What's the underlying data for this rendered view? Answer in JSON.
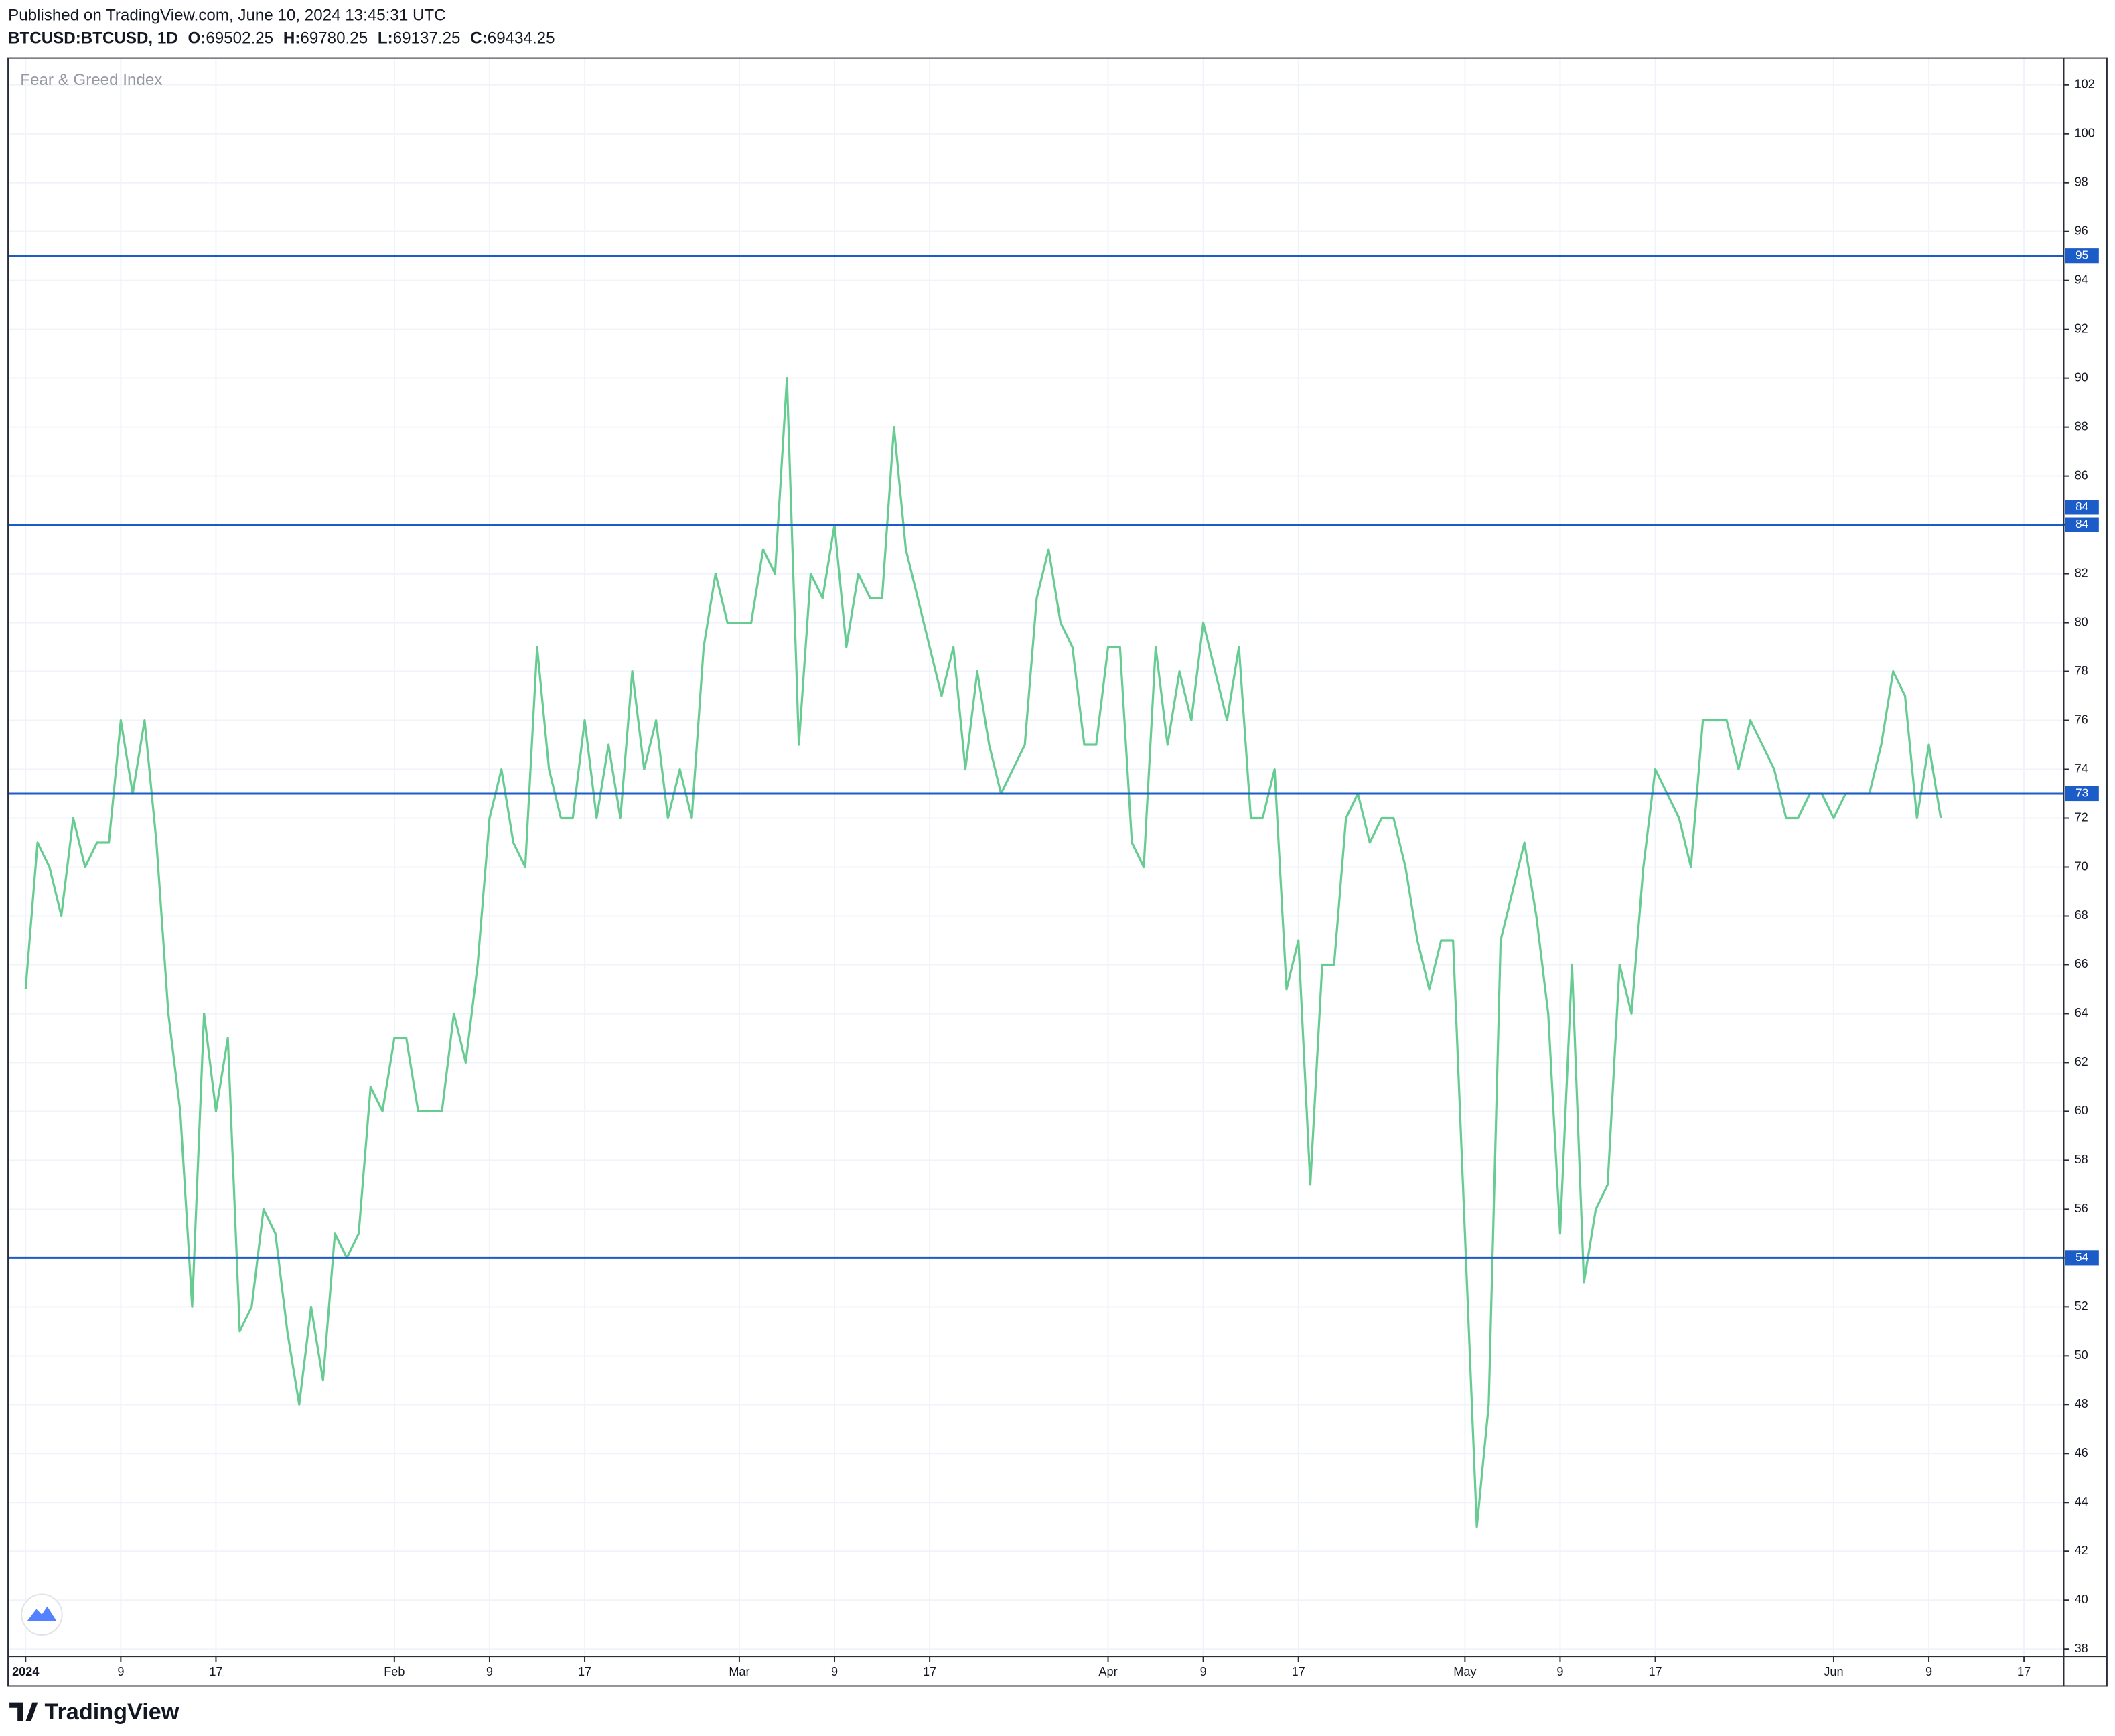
{
  "header": {
    "published": "Published on TradingView.com, June 10, 2024 13:45:31 UTC",
    "symbol": "BTCUSD:BTCUSD, 1D",
    "ohlc": [
      {
        "label": "O:",
        "value": 69502.25
      },
      {
        "label": "H:",
        "value": 69780.25
      },
      {
        "label": "L:",
        "value": 69137.25
      },
      {
        "label": "C:",
        "value": 69434.25
      }
    ]
  },
  "footer": {
    "brand": "TradingView"
  },
  "chart_data": {
    "type": "line",
    "x": [
      "2024-01-01",
      "2024-01-02",
      "2024-01-03",
      "2024-01-04",
      "2024-01-05",
      "2024-01-06",
      "2024-01-07",
      "2024-01-08",
      "2024-01-09",
      "2024-01-10",
      "2024-01-11",
      "2024-01-12",
      "2024-01-13",
      "2024-01-14",
      "2024-01-15",
      "2024-01-16",
      "2024-01-17",
      "2024-01-18",
      "2024-01-19",
      "2024-01-20",
      "2024-01-21",
      "2024-01-22",
      "2024-01-23",
      "2024-01-24",
      "2024-01-25",
      "2024-01-26",
      "2024-01-27",
      "2024-01-28",
      "2024-01-29",
      "2024-01-30",
      "2024-01-31",
      "2024-02-01",
      "2024-02-02",
      "2024-02-03",
      "2024-02-04",
      "2024-02-05",
      "2024-02-06",
      "2024-02-07",
      "2024-02-08",
      "2024-02-09",
      "2024-02-10",
      "2024-02-11",
      "2024-02-12",
      "2024-02-13",
      "2024-02-14",
      "2024-02-15",
      "2024-02-16",
      "2024-02-17",
      "2024-02-18",
      "2024-02-19",
      "2024-02-20",
      "2024-02-21",
      "2024-02-22",
      "2024-02-23",
      "2024-02-24",
      "2024-02-25",
      "2024-02-26",
      "2024-02-27",
      "2024-02-28",
      "2024-02-29",
      "2024-03-01",
      "2024-03-02",
      "2024-03-03",
      "2024-03-04",
      "2024-03-05",
      "2024-03-06",
      "2024-03-07",
      "2024-03-08",
      "2024-03-09",
      "2024-03-10",
      "2024-03-11",
      "2024-03-12",
      "2024-03-13",
      "2024-03-14",
      "2024-03-15",
      "2024-03-16",
      "2024-03-17",
      "2024-03-18",
      "2024-03-19",
      "2024-03-20",
      "2024-03-21",
      "2024-03-22",
      "2024-03-23",
      "2024-03-24",
      "2024-03-25",
      "2024-03-26",
      "2024-03-27",
      "2024-03-28",
      "2024-03-29",
      "2024-03-30",
      "2024-03-31",
      "2024-04-01",
      "2024-04-02",
      "2024-04-03",
      "2024-04-04",
      "2024-04-05",
      "2024-04-06",
      "2024-04-07",
      "2024-04-08",
      "2024-04-09",
      "2024-04-10",
      "2024-04-11",
      "2024-04-12",
      "2024-04-13",
      "2024-04-14",
      "2024-04-15",
      "2024-04-16",
      "2024-04-17",
      "2024-04-18",
      "2024-04-19",
      "2024-04-20",
      "2024-04-21",
      "2024-04-22",
      "2024-04-23",
      "2024-04-24",
      "2024-04-25",
      "2024-04-26",
      "2024-04-27",
      "2024-04-28",
      "2024-04-29",
      "2024-04-30",
      "2024-05-01",
      "2024-05-02",
      "2024-05-03",
      "2024-05-04",
      "2024-05-05",
      "2024-05-06",
      "2024-05-07",
      "2024-05-08",
      "2024-05-09",
      "2024-05-10",
      "2024-05-11",
      "2024-05-12",
      "2024-05-13",
      "2024-05-14",
      "2024-05-15",
      "2024-05-16",
      "2024-05-17",
      "2024-05-18",
      "2024-05-19",
      "2024-05-20",
      "2024-05-21",
      "2024-05-22",
      "2024-05-23",
      "2024-05-24",
      "2024-05-25",
      "2024-05-26",
      "2024-05-27",
      "2024-05-28",
      "2024-05-29",
      "2024-05-30",
      "2024-05-31",
      "2024-06-01",
      "2024-06-02",
      "2024-06-03",
      "2024-06-04",
      "2024-06-05",
      "2024-06-06",
      "2024-06-07",
      "2024-06-08",
      "2024-06-09",
      "2024-06-10"
    ],
    "series": [
      {
        "name": "Fear & Greed Index",
        "color": "#66cc91",
        "values": [
          65,
          71,
          70,
          68,
          72,
          70,
          71,
          71,
          76,
          73,
          76,
          71,
          64,
          60,
          52,
          64,
          60,
          63,
          51,
          52,
          56,
          55,
          51,
          48,
          52,
          49,
          55,
          54,
          55,
          61,
          60,
          63,
          63,
          60,
          60,
          60,
          64,
          62,
          66,
          72,
          74,
          71,
          70,
          79,
          74,
          72,
          72,
          76,
          72,
          75,
          72,
          78,
          74,
          76,
          72,
          74,
          72,
          79,
          82,
          80,
          80,
          80,
          83,
          82,
          90,
          75,
          82,
          81,
          84,
          79,
          82,
          81,
          81,
          88,
          83,
          81,
          79,
          77,
          79,
          74,
          78,
          75,
          73,
          74,
          75,
          81,
          83,
          80,
          79,
          75,
          75,
          79,
          79,
          71,
          70,
          79,
          75,
          78,
          76,
          80,
          78,
          76,
          79,
          72,
          72,
          74,
          65,
          67,
          57,
          66,
          66,
          72,
          73,
          71,
          72,
          72,
          70,
          67,
          65,
          67,
          67,
          55,
          43,
          48,
          67,
          69,
          71,
          68,
          64,
          55,
          66,
          53,
          56,
          57,
          66,
          64,
          70,
          74,
          73,
          72,
          70,
          76,
          76,
          76,
          74,
          76,
          75,
          74,
          72,
          72,
          73,
          73,
          72,
          73,
          73,
          73,
          75,
          78,
          77,
          72,
          75,
          72
        ]
      }
    ],
    "levels": [
      95,
      84,
      84,
      73,
      54
    ],
    "level_color": "#1c5cc8",
    "xlim": [
      "2024-01-01",
      "2024-06-20"
    ],
    "xticks": [
      {
        "value": "2024-01-01",
        "label": "2024"
      },
      {
        "value": "2024-01-09",
        "label": "9"
      },
      {
        "value": "2024-01-17",
        "label": "17"
      },
      {
        "value": "2024-02-01",
        "label": "Feb"
      },
      {
        "value": "2024-02-09",
        "label": "9"
      },
      {
        "value": "2024-02-17",
        "label": "17"
      },
      {
        "value": "2024-03-01",
        "label": "Mar"
      },
      {
        "value": "2024-03-09",
        "label": "9"
      },
      {
        "value": "2024-03-17",
        "label": "17"
      },
      {
        "value": "2024-04-01",
        "label": "Apr"
      },
      {
        "value": "2024-04-09",
        "label": "9"
      },
      {
        "value": "2024-04-17",
        "label": "17"
      },
      {
        "value": "2024-05-01",
        "label": "May"
      },
      {
        "value": "2024-05-09",
        "label": "9"
      },
      {
        "value": "2024-05-17",
        "label": "17"
      },
      {
        "value": "2024-06-01",
        "label": "Jun"
      },
      {
        "value": "2024-06-09",
        "label": "9"
      },
      {
        "value": "2024-06-17",
        "label": "17"
      }
    ],
    "ylim": [
      37.7,
      103.1
    ],
    "yticks": [
      38,
      40,
      42,
      44,
      46,
      48,
      50,
      52,
      54,
      56,
      58,
      60,
      62,
      64,
      66,
      68,
      70,
      72,
      74,
      76,
      78,
      80,
      82,
      84,
      86,
      88,
      90,
      92,
      94,
      96,
      98,
      100,
      102
    ],
    "grid": true
  }
}
